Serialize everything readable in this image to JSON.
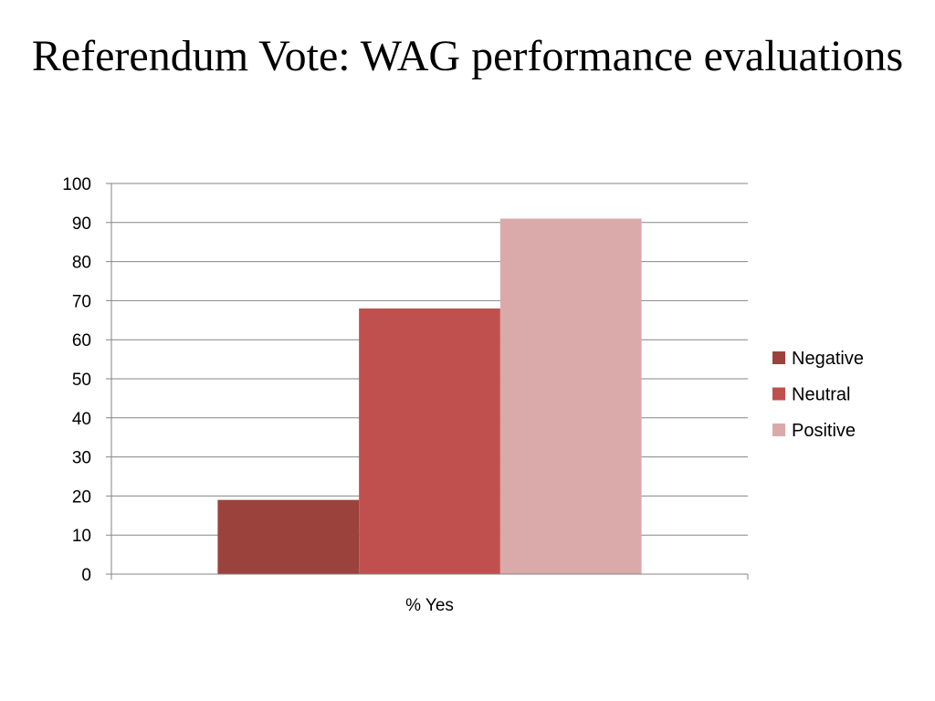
{
  "slide": {
    "title": "Referendum Vote: WAG performance evaluations"
  },
  "chart_data": {
    "type": "bar",
    "title": "",
    "xlabel": "",
    "ylabel": "",
    "categories": [
      "% Yes"
    ],
    "series": [
      {
        "name": "Negative",
        "values": [
          19
        ],
        "color": "#9c423d"
      },
      {
        "name": "Neutral",
        "values": [
          68
        ],
        "color": "#c0504e"
      },
      {
        "name": "Positive",
        "values": [
          91
        ],
        "color": "#d9aaa9"
      }
    ],
    "ylim": [
      0,
      100
    ],
    "yticks": [
      "0",
      "10",
      "20",
      "30",
      "40",
      "50",
      "60",
      "70",
      "80",
      "90",
      "100"
    ],
    "grid": true,
    "gridline_color": "#868686",
    "legend_position": "right"
  }
}
